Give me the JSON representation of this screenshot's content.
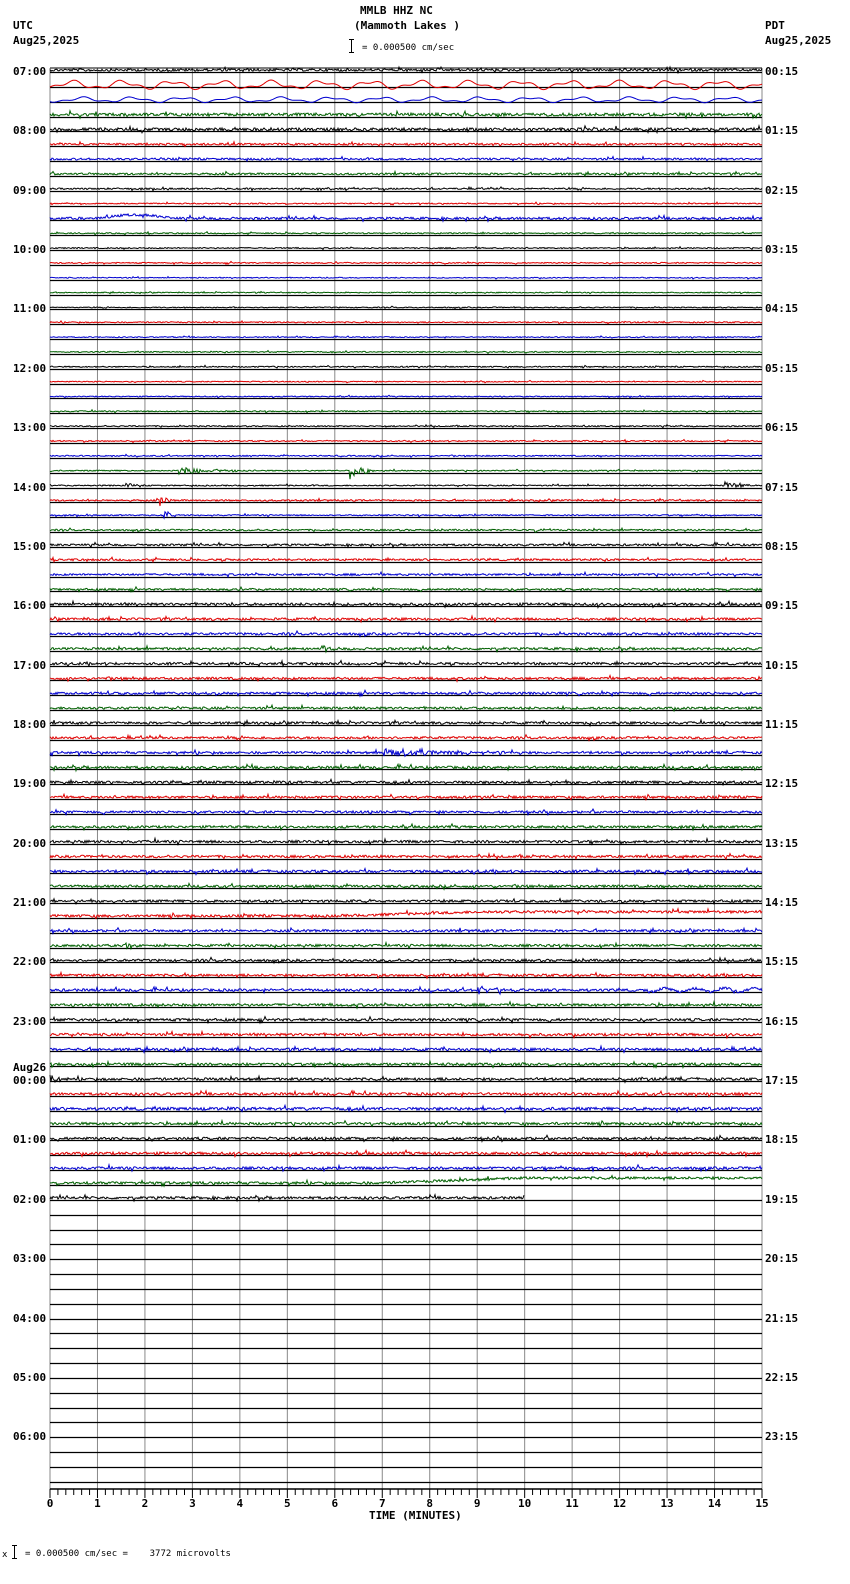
{
  "header": {
    "station": "MMLB HHZ NC",
    "location": "(Mammoth Lakes )",
    "left_tz": "UTC",
    "left_date": "Aug25,2025",
    "right_tz": "PDT",
    "right_date": "Aug25,2025",
    "scale_text": "= 0.000500 cm/sec"
  },
  "footer": {
    "scale_note": "= 0.000500 cm/sec =    3772 microvolts",
    "prefix": "x"
  },
  "date_change_label": "Aug26",
  "colors": {
    "trace": [
      "#000000",
      "#e00000",
      "#0000d0",
      "#006000"
    ],
    "grid": "#888888"
  },
  "chart_data": {
    "type": "line",
    "title": "MMLB HHZ NC (Mammoth Lakes )",
    "xlabel": "TIME (MINUTES)",
    "ylabel": "",
    "xlim": [
      0,
      15
    ],
    "x_ticks": [
      "0",
      "1",
      "2",
      "3",
      "4",
      "5",
      "6",
      "7",
      "8",
      "9",
      "10",
      "11",
      "12",
      "13",
      "14",
      "15"
    ],
    "grid": true,
    "legend": "none",
    "rows_per_hour": 4,
    "rows_with_data": 77,
    "last_row_end_minute": 10,
    "left_labels_utc": [
      "07:00",
      "08:00",
      "09:00",
      "10:00",
      "11:00",
      "12:00",
      "13:00",
      "14:00",
      "15:00",
      "16:00",
      "17:00",
      "18:00",
      "19:00",
      "20:00",
      "21:00",
      "22:00",
      "23:00",
      "00:00",
      "01:00",
      "02:00",
      "03:00",
      "04:00",
      "05:00",
      "06:00"
    ],
    "right_labels_pdt": [
      "00:15",
      "01:15",
      "02:15",
      "03:15",
      "04:15",
      "05:15",
      "06:15",
      "07:15",
      "08:15",
      "09:15",
      "10:15",
      "11:15",
      "12:15",
      "13:15",
      "14:15",
      "15:15",
      "16:15",
      "17:15",
      "18:15",
      "19:15",
      "20:15",
      "21:15",
      "22:15",
      "23:15"
    ],
    "noise_levels": [
      1.2,
      4,
      2.5,
      1.5,
      1.5,
      1,
      1,
      1,
      0.8,
      0.6,
      1.2,
      0.6,
      0.6,
      0.6,
      0.5,
      0.5,
      0.5,
      0.6,
      0.5,
      0.6,
      0.6,
      0.5,
      0.5,
      0.6,
      0.6,
      0.6,
      0.6,
      0.6,
      0.6,
      0.8,
      0.6,
      0.8,
      1,
      1,
      1,
      1,
      1.3,
      1.2,
      1.2,
      1.2,
      1.2,
      1.2,
      1.2,
      1.2,
      1.2,
      1.2,
      1.2,
      1.3,
      1.3,
      1.2,
      1.2,
      1.2,
      1.3,
      1.2,
      1.3,
      1.2,
      1.2,
      1.3,
      1.2,
      1.2,
      1.2,
      1.2,
      1.3,
      1.3,
      1.3,
      1.3,
      1.3,
      1.3,
      1.3,
      1.3,
      1.5,
      1.3,
      1.3,
      1.3,
      1.3,
      1.3,
      1.3
    ],
    "events": [
      {
        "row": 10,
        "minute": 1.0,
        "dur": 1.6,
        "amp": -3.5,
        "kind": "bump"
      },
      {
        "row": 27,
        "minute": 2.7,
        "dur": 1.5,
        "amp": 4,
        "kind": "burst"
      },
      {
        "row": 27,
        "minute": 6.3,
        "dur": 0.6,
        "amp": 9,
        "kind": "burst"
      },
      {
        "row": 28,
        "minute": 1.6,
        "dur": 0.3,
        "amp": 3,
        "kind": "burst"
      },
      {
        "row": 28,
        "minute": 14.2,
        "dur": 0.6,
        "amp": 5,
        "kind": "burst"
      },
      {
        "row": 29,
        "minute": 2.3,
        "dur": 0.3,
        "amp": 7,
        "kind": "burst"
      },
      {
        "row": 30,
        "minute": 2.4,
        "dur": 0.3,
        "amp": 5,
        "kind": "burst"
      },
      {
        "row": 31,
        "minute": 10.2,
        "dur": 0.5,
        "amp": 3,
        "kind": "burst"
      },
      {
        "row": 39,
        "minute": 5.7,
        "dur": 0.4,
        "amp": 4,
        "kind": "burst"
      },
      {
        "row": 46,
        "minute": 7.0,
        "dur": 3.0,
        "amp": 5,
        "kind": "burst"
      },
      {
        "row": 57,
        "minute": 6.0,
        "dur": 9.0,
        "amp": -4,
        "kind": "drift"
      },
      {
        "row": 59,
        "minute": 1.6,
        "dur": 0.3,
        "amp": 4,
        "kind": "burst"
      },
      {
        "row": 62,
        "minute": 9.0,
        "dur": 1.0,
        "amp": 4,
        "kind": "burst"
      },
      {
        "row": 62,
        "minute": 12.5,
        "dur": 2.5,
        "amp": 3,
        "kind": "wave"
      },
      {
        "row": 66,
        "minute": 13.5,
        "dur": 0.4,
        "amp": 3,
        "kind": "burst"
      },
      {
        "row": 68,
        "minute": 0.0,
        "dur": 0.3,
        "amp": 6,
        "kind": "burst"
      },
      {
        "row": 74,
        "minute": 11.4,
        "dur": 0.4,
        "amp": 3,
        "kind": "burst"
      },
      {
        "row": 75,
        "minute": 7.0,
        "dur": 8.0,
        "amp": -5,
        "kind": "drift"
      }
    ]
  }
}
